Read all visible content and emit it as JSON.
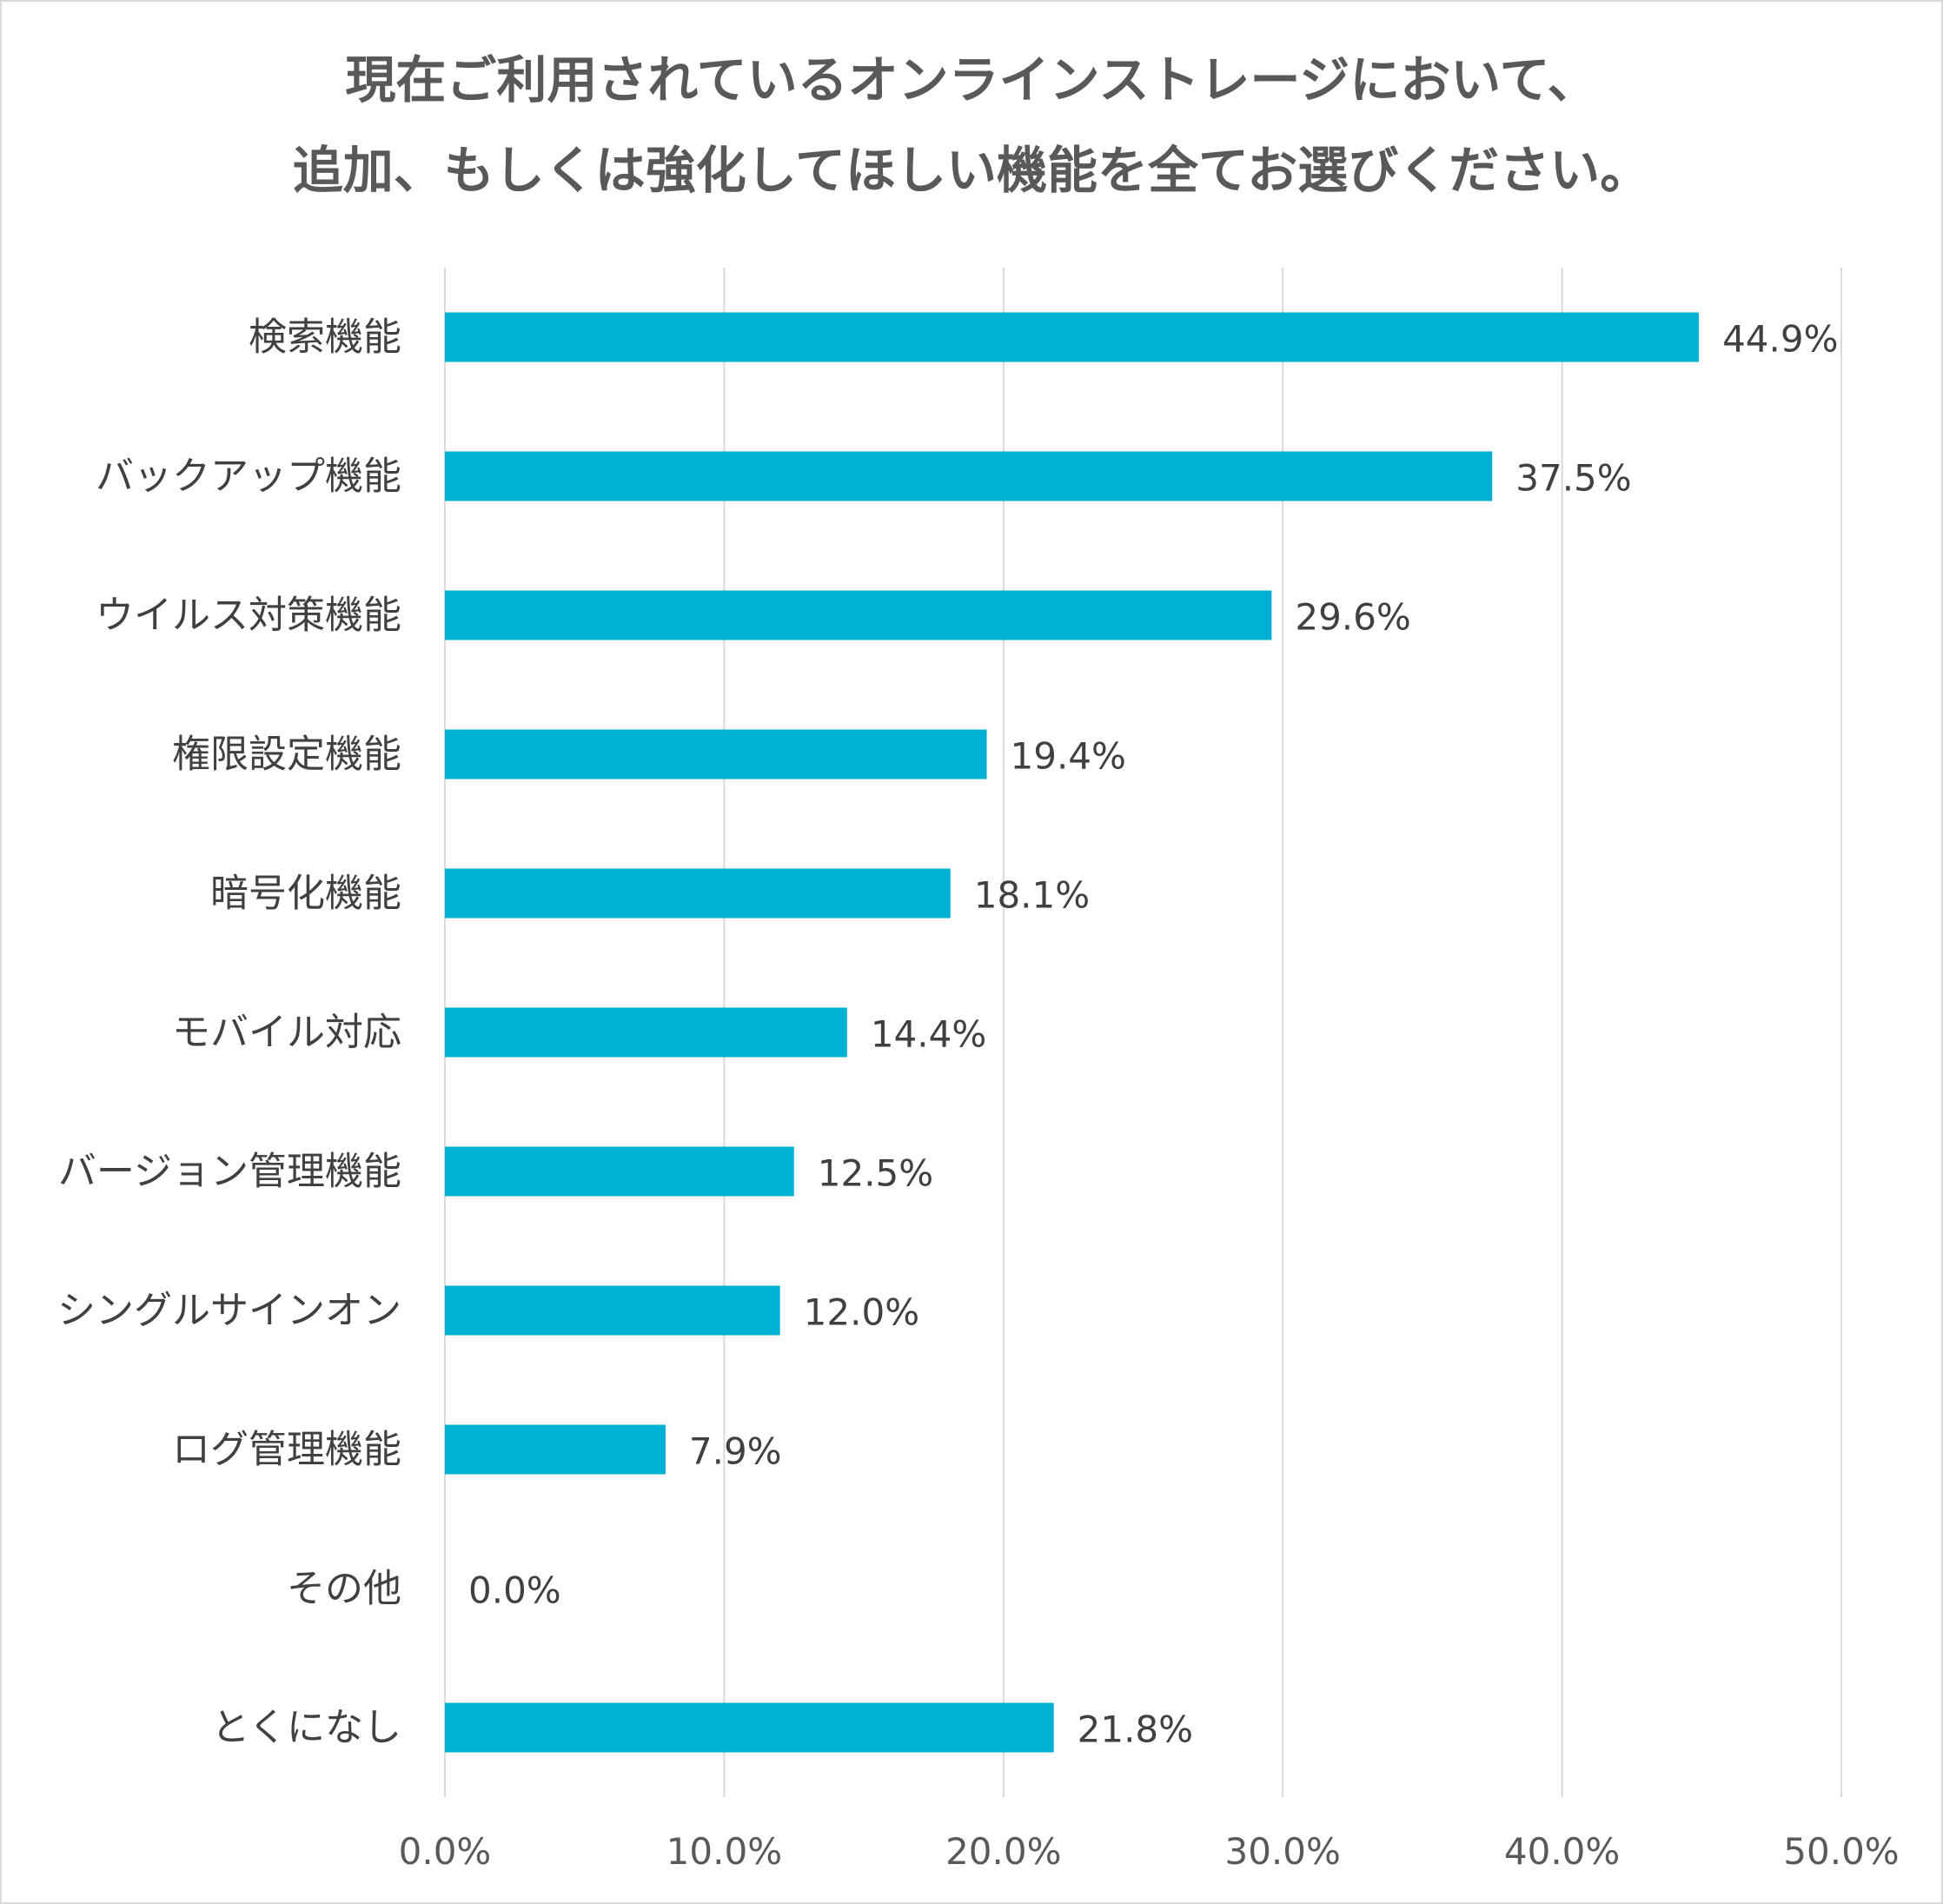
{
  "chart_data": {
    "type": "bar",
    "orientation": "horizontal",
    "title_lines": [
      "現在ご利用されているオンラインストレージにおいて、",
      "追加、もしくは強化してほしい機能を全てお選びください。"
    ],
    "categories": [
      "検索機能",
      "バックアップ機能",
      "ウイルス対策機能",
      "権限設定機能",
      "暗号化機能",
      "モバイル対応",
      "バージョン管理機能",
      "シングルサインオン",
      "ログ管理機能",
      "その他",
      "とくになし"
    ],
    "values": [
      44.9,
      37.5,
      29.6,
      19.4,
      18.1,
      14.4,
      12.5,
      12.0,
      7.9,
      0.0,
      21.8
    ],
    "value_labels": [
      "44.9%",
      "37.5%",
      "29.6%",
      "19.4%",
      "18.1%",
      "14.4%",
      "12.5%",
      "12.0%",
      "7.9%",
      "0.0%",
      "21.8%"
    ],
    "xlim": [
      0,
      50
    ],
    "x_ticks": [
      0,
      10,
      20,
      30,
      40,
      50
    ],
    "x_tick_labels": [
      "0.0%",
      "10.0%",
      "20.0%",
      "30.0%",
      "40.0%",
      "50.0%"
    ],
    "grid": true,
    "bar_color": "#00b0d4",
    "grid_color": "#d9d9d9"
  }
}
